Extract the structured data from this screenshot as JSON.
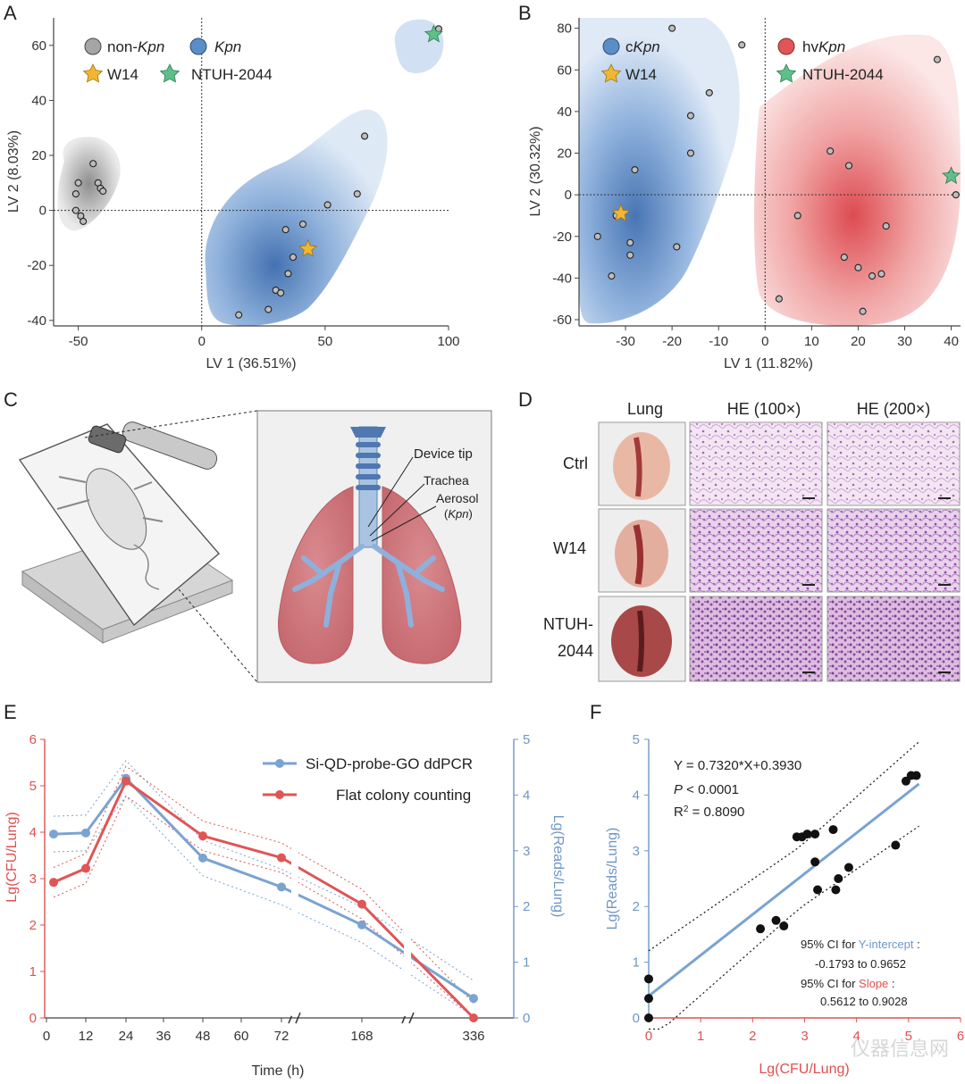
{
  "panels": {
    "a": "A",
    "b": "B",
    "c": "C",
    "d": "D",
    "e": "E",
    "f": "F"
  },
  "colors": {
    "blue": "#5a8ec6",
    "blue_light": "#c6daf0",
    "gray": "#9a9a9a",
    "red": "#e05555",
    "red_light": "#f6c8c8",
    "yellow": "#f2b632",
    "green": "#5fbf8a",
    "line_blue": "#7aa3d1",
    "tick_red": "#e0504f",
    "tick_blue": "#6f97c7"
  },
  "chart_data": [
    {
      "id": "A",
      "type": "scatter",
      "xlabel": "LV 1 (36.51%)",
      "ylabel": "LV 2 (8.03%)",
      "xlim": [
        -60,
        100
      ],
      "ylim": [
        -42,
        70
      ],
      "xticks": [
        -50,
        0,
        50,
        100
      ],
      "yticks": [
        -40,
        -20,
        0,
        20,
        40,
        60
      ],
      "legend": [
        {
          "prefix": "non-",
          "italic": "Kpn",
          "marker": "circle",
          "color": "gray"
        },
        {
          "prefix": "",
          "italic": "Kpn",
          "marker": "circle",
          "color": "blue"
        },
        {
          "prefix": "W14",
          "italic": "",
          "marker": "star",
          "color": "yellow"
        },
        {
          "prefix": "NTUH-2044",
          "italic": "",
          "marker": "star",
          "color": "green"
        }
      ],
      "series": [
        {
          "name": "non-Kpn",
          "x": [
            -51,
            -50,
            -51,
            -49,
            -48,
            -44,
            -42,
            -41,
            -40
          ],
          "y": [
            6,
            10,
            0,
            -2,
            -4,
            17,
            10,
            8,
            7
          ]
        },
        {
          "name": "Kpn",
          "x": [
            15,
            27,
            30,
            32,
            34,
            35,
            37,
            41,
            51,
            63,
            66
          ],
          "y": [
            -38,
            -36,
            -29,
            -30,
            -7,
            -23,
            -17,
            -5,
            2,
            6,
            27
          ]
        },
        {
          "name": "Kpn",
          "x": [
            96
          ],
          "y": [
            66
          ]
        }
      ],
      "stars": [
        {
          "name": "W14",
          "x": 43,
          "y": -14
        },
        {
          "name": "NTUH-2044",
          "x": 94,
          "y": 64
        }
      ]
    },
    {
      "id": "B",
      "type": "scatter",
      "xlabel": "LV 1 (11.82%)",
      "ylabel": "LV 2 (30.32%)",
      "xlim": [
        -40,
        42
      ],
      "ylim": [
        -63,
        85
      ],
      "xticks": [
        -30,
        -20,
        -10,
        0,
        10,
        20,
        30,
        40
      ],
      "yticks": [
        -60,
        -40,
        -20,
        0,
        20,
        40,
        60,
        80
      ],
      "legend": [
        {
          "prefix": "c",
          "italic": "Kpn",
          "marker": "circle",
          "color": "blue"
        },
        {
          "prefix": "hv",
          "italic": "Kpn",
          "marker": "circle",
          "color": "red"
        },
        {
          "prefix": "W14",
          "italic": "",
          "marker": "star",
          "color": "yellow"
        },
        {
          "prefix": "NTUH-2044",
          "italic": "",
          "marker": "star",
          "color": "green"
        }
      ],
      "series": [
        {
          "name": "cKpn",
          "x": [
            -36,
            -33,
            -32,
            -29,
            -29,
            -28,
            -19,
            -16,
            -16,
            -12,
            -5,
            -20
          ],
          "y": [
            -20,
            -39,
            -10,
            -29,
            -23,
            12,
            -25,
            38,
            20,
            49,
            72,
            80
          ]
        },
        {
          "name": "hvKpn",
          "x": [
            3,
            7,
            14,
            18,
            17,
            20,
            21,
            23,
            25,
            26,
            37,
            40,
            41
          ],
          "y": [
            -50,
            -10,
            21,
            14,
            -30,
            -35,
            -56,
            -39,
            -38,
            -15,
            65,
            10,
            0
          ]
        }
      ],
      "stars": [
        {
          "name": "W14",
          "x": -31,
          "y": -9
        },
        {
          "name": "NTUH-2044",
          "x": 40,
          "y": 9
        }
      ]
    },
    {
      "id": "E",
      "type": "line",
      "xlabel": "Time (h)",
      "ylabel_left": "Lg(CFU/Lung)",
      "ylabel_right": "Lg(Reads/Lung)",
      "xticks": [
        "0",
        "12",
        "24",
        "36",
        "48",
        "60",
        "72",
        "168",
        "336"
      ],
      "ylim_left": [
        0,
        6
      ],
      "ylim_right": [
        0,
        5
      ],
      "yticks_left": [
        0,
        1,
        2,
        3,
        4,
        5,
        6
      ],
      "yticks_right": [
        0,
        1,
        2,
        3,
        4,
        5
      ],
      "legend": [
        "Si-QD-probe-GO ddPCR",
        "Flat colony counting"
      ],
      "series": [
        {
          "name": "Si-QD-probe-GO ddPCR",
          "axis": "right",
          "t": [
            "3",
            "12",
            "24",
            "48",
            "72",
            "168",
            "336"
          ],
          "values": [
            3.3,
            3.32,
            4.3,
            2.87,
            2.35,
            1.67,
            0.35
          ]
        },
        {
          "name": "Flat colony counting",
          "axis": "left",
          "t": [
            "3",
            "12",
            "24",
            "48",
            "72",
            "168",
            "336"
          ],
          "values": [
            2.92,
            3.22,
            5.1,
            3.92,
            3.45,
            2.45,
            0
          ]
        }
      ]
    },
    {
      "id": "F",
      "type": "scatter",
      "xlabel": "Lg(CFU/Lung)",
      "ylabel": "Lg(Reads/Lung)",
      "xlim": [
        0,
        6
      ],
      "ylim": [
        0,
        5
      ],
      "xticks": [
        0,
        1,
        2,
        3,
        4,
        5,
        6
      ],
      "yticks": [
        0,
        1,
        2,
        3,
        4,
        5
      ],
      "equation": "Y = 0.7320*X+0.3930",
      "p_label": "P",
      "p_value": " < 0.0001",
      "r2_prefix": "R",
      "r2_suffix": " = 0.8090",
      "ci_intercept_prefix": "95% CI for ",
      "ci_intercept_term": "Y-intercept",
      "ci_intercept_colon": " :",
      "ci_intercept_range": "-0.1793 to 0.9652",
      "ci_slope_prefix": "95% CI for ",
      "ci_slope_term": "Slope",
      "ci_slope_colon": " :",
      "ci_slope_range": "0.5612 to 0.9028",
      "slope": 0.732,
      "intercept": 0.393,
      "points_x": [
        0,
        0,
        0,
        2.15,
        2.45,
        2.6,
        2.85,
        2.95,
        3.05,
        3.2,
        3.2,
        3.25,
        3.55,
        3.65,
        3.85,
        3.6,
        4.75,
        4.95,
        5.05,
        5.15
      ],
      "points_y": [
        0,
        0.35,
        0.7,
        1.6,
        1.75,
        1.65,
        3.25,
        3.25,
        3.3,
        3.3,
        2.8,
        2.3,
        3.38,
        2.5,
        2.7,
        2.3,
        3.1,
        4.25,
        4.35,
        4.35
      ]
    }
  ],
  "panel_c": {
    "labels": [
      "Device tip",
      "Trachea",
      "Aerosol",
      "Kpn"
    ]
  },
  "panel_d": {
    "col_headers": [
      "Lung",
      "HE (100×)",
      "HE (200×)"
    ],
    "rows": [
      "Ctrl",
      "W14",
      "NTUH-",
      "2044"
    ]
  },
  "watermark": "仪器信息网"
}
